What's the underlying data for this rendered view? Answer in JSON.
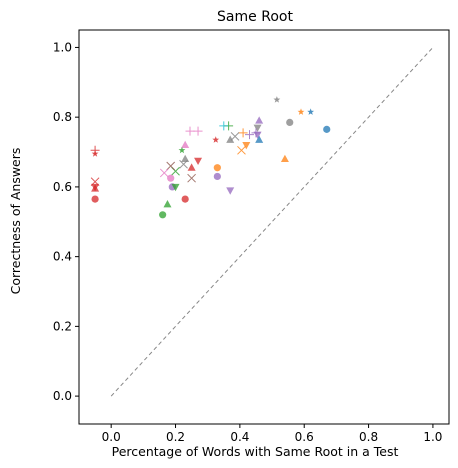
{
  "chart_data": {
    "type": "scatter",
    "title": "Same Root",
    "xlabel": "Percentage of Words with Same Root in a Test",
    "ylabel": "Correctness of Answers",
    "xlim": [
      -0.1,
      1.05
    ],
    "ylim": [
      -0.08,
      1.05
    ],
    "xticks": [
      "0.0",
      "0.2",
      "0.4",
      "0.6",
      "0.8",
      "1.0"
    ],
    "yticks": [
      "0.0",
      "0.2",
      "0.4",
      "0.6",
      "0.8",
      "1.0"
    ],
    "grid": false,
    "reference_line": {
      "from": [
        0,
        0
      ],
      "to": [
        1,
        1
      ],
      "style": "dashed",
      "color": "#888888"
    },
    "points": [
      {
        "x": 0.67,
        "y": 0.765,
        "marker": "circle",
        "color": "#1f77b4"
      },
      {
        "x": 0.62,
        "y": 0.815,
        "marker": "star",
        "color": "#1f77b4"
      },
      {
        "x": 0.59,
        "y": 0.815,
        "marker": "star",
        "color": "#ff7f0e"
      },
      {
        "x": 0.555,
        "y": 0.785,
        "marker": "circle",
        "color": "#7f7f7f"
      },
      {
        "x": 0.515,
        "y": 0.85,
        "marker": "star",
        "color": "#7f7f7f"
      },
      {
        "x": 0.54,
        "y": 0.68,
        "marker": "triangle-up",
        "color": "#ff7f0e"
      },
      {
        "x": 0.46,
        "y": 0.79,
        "marker": "triangle-up",
        "color": "#9467bd"
      },
      {
        "x": 0.455,
        "y": 0.77,
        "marker": "triangle-down",
        "color": "#7f7f7f"
      },
      {
        "x": 0.455,
        "y": 0.75,
        "marker": "triangle-down",
        "color": "#9467bd"
      },
      {
        "x": 0.46,
        "y": 0.735,
        "marker": "triangle-up",
        "color": "#1f77b4"
      },
      {
        "x": 0.45,
        "y": 0.755,
        "marker": "plus",
        "color": "#9467bd"
      },
      {
        "x": 0.43,
        "y": 0.75,
        "marker": "plus",
        "color": "#9467bd"
      },
      {
        "x": 0.41,
        "y": 0.755,
        "marker": "plus",
        "color": "#ff7f0e"
      },
      {
        "x": 0.42,
        "y": 0.72,
        "marker": "triangle-down",
        "color": "#ff7f0e"
      },
      {
        "x": 0.405,
        "y": 0.705,
        "marker": "x",
        "color": "#ff7f0e"
      },
      {
        "x": 0.385,
        "y": 0.745,
        "marker": "x",
        "color": "#7f7f7f"
      },
      {
        "x": 0.365,
        "y": 0.775,
        "marker": "plus",
        "color": "#2ca02c"
      },
      {
        "x": 0.35,
        "y": 0.775,
        "marker": "plus",
        "color": "#17becf"
      },
      {
        "x": 0.37,
        "y": 0.735,
        "marker": "triangle-up",
        "color": "#7f7f7f"
      },
      {
        "x": 0.33,
        "y": 0.655,
        "marker": "circle",
        "color": "#ff7f0e"
      },
      {
        "x": 0.33,
        "y": 0.63,
        "marker": "circle",
        "color": "#9467bd"
      },
      {
        "x": 0.37,
        "y": 0.59,
        "marker": "triangle-down",
        "color": "#9467bd"
      },
      {
        "x": 0.325,
        "y": 0.735,
        "marker": "star",
        "color": "#d62728"
      },
      {
        "x": 0.27,
        "y": 0.76,
        "marker": "plus",
        "color": "#e377c2"
      },
      {
        "x": 0.245,
        "y": 0.76,
        "marker": "plus",
        "color": "#e377c2"
      },
      {
        "x": 0.27,
        "y": 0.675,
        "marker": "triangle-down",
        "color": "#d62728"
      },
      {
        "x": 0.25,
        "y": 0.655,
        "marker": "triangle-up",
        "color": "#d62728"
      },
      {
        "x": 0.25,
        "y": 0.625,
        "marker": "x",
        "color": "#8c564b"
      },
      {
        "x": 0.23,
        "y": 0.72,
        "marker": "triangle-up",
        "color": "#e377c2"
      },
      {
        "x": 0.22,
        "y": 0.705,
        "marker": "star",
        "color": "#2ca02c"
      },
      {
        "x": 0.23,
        "y": 0.68,
        "marker": "triangle-up",
        "color": "#7f7f7f"
      },
      {
        "x": 0.225,
        "y": 0.665,
        "marker": "x",
        "color": "#7f7f7f"
      },
      {
        "x": 0.23,
        "y": 0.565,
        "marker": "circle",
        "color": "#d62728"
      },
      {
        "x": 0.2,
        "y": 0.645,
        "marker": "x",
        "color": "#2ca02c"
      },
      {
        "x": 0.185,
        "y": 0.66,
        "marker": "x",
        "color": "#8c564b"
      },
      {
        "x": 0.165,
        "y": 0.64,
        "marker": "x",
        "color": "#e377c2"
      },
      {
        "x": 0.185,
        "y": 0.625,
        "marker": "circle",
        "color": "#e377c2"
      },
      {
        "x": 0.19,
        "y": 0.6,
        "marker": "circle",
        "color": "#9467bd"
      },
      {
        "x": 0.2,
        "y": 0.6,
        "marker": "triangle-down",
        "color": "#2ca02c"
      },
      {
        "x": 0.175,
        "y": 0.55,
        "marker": "triangle-up",
        "color": "#2ca02c"
      },
      {
        "x": 0.16,
        "y": 0.52,
        "marker": "circle",
        "color": "#2ca02c"
      },
      {
        "x": -0.05,
        "y": 0.705,
        "marker": "plus",
        "color": "#d62728"
      },
      {
        "x": -0.05,
        "y": 0.695,
        "marker": "star",
        "color": "#d62728"
      },
      {
        "x": -0.05,
        "y": 0.615,
        "marker": "x",
        "color": "#d62728"
      },
      {
        "x": -0.05,
        "y": 0.6,
        "marker": "triangle-down",
        "color": "#d62728"
      },
      {
        "x": -0.05,
        "y": 0.595,
        "marker": "triangle-up",
        "color": "#d62728"
      },
      {
        "x": -0.05,
        "y": 0.565,
        "marker": "circle",
        "color": "#d62728"
      }
    ]
  }
}
